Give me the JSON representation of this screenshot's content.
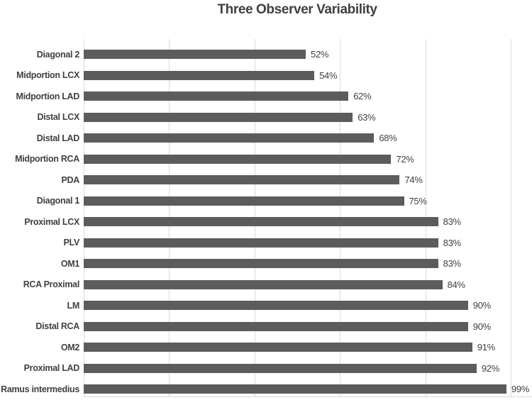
{
  "chart_data": {
    "type": "bar",
    "orientation": "horizontal",
    "title": "Three Observer Variability",
    "xlabel": "",
    "ylabel": "",
    "categories": [
      "Diagonal 2",
      "Midportion LCX",
      "Midportion LAD",
      "Distal LCX",
      "Distal LAD",
      "Midportion RCA",
      "PDA",
      "Diagonal 1",
      "Proximal LCX",
      "PLV",
      "OM1",
      "RCA Proximal",
      "LM",
      "Distal RCA",
      "OM2",
      "Proximal LAD",
      "Ramus intermedius"
    ],
    "values": [
      52,
      54,
      62,
      63,
      68,
      72,
      74,
      75,
      83,
      83,
      83,
      84,
      90,
      90,
      91,
      92,
      99
    ],
    "data_labels": [
      "52%",
      "54%",
      "62%",
      "63%",
      "68%",
      "72%",
      "74%",
      "75%",
      "83%",
      "83%",
      "83%",
      "84%",
      "90%",
      "90%",
      "91%",
      "92%",
      "99%"
    ],
    "value_suffix": "%",
    "xlim": [
      0,
      100
    ],
    "gridline_interval": 20,
    "grid": "vertical-gridlines-on",
    "legend": "none",
    "x_tick_labels_visible": false,
    "colors": {
      "bar": "#5c5c5c",
      "gridline": "#d9d9d9",
      "text": "#404040",
      "title_text": "#3f3f3f",
      "background": "#ffffff"
    }
  }
}
